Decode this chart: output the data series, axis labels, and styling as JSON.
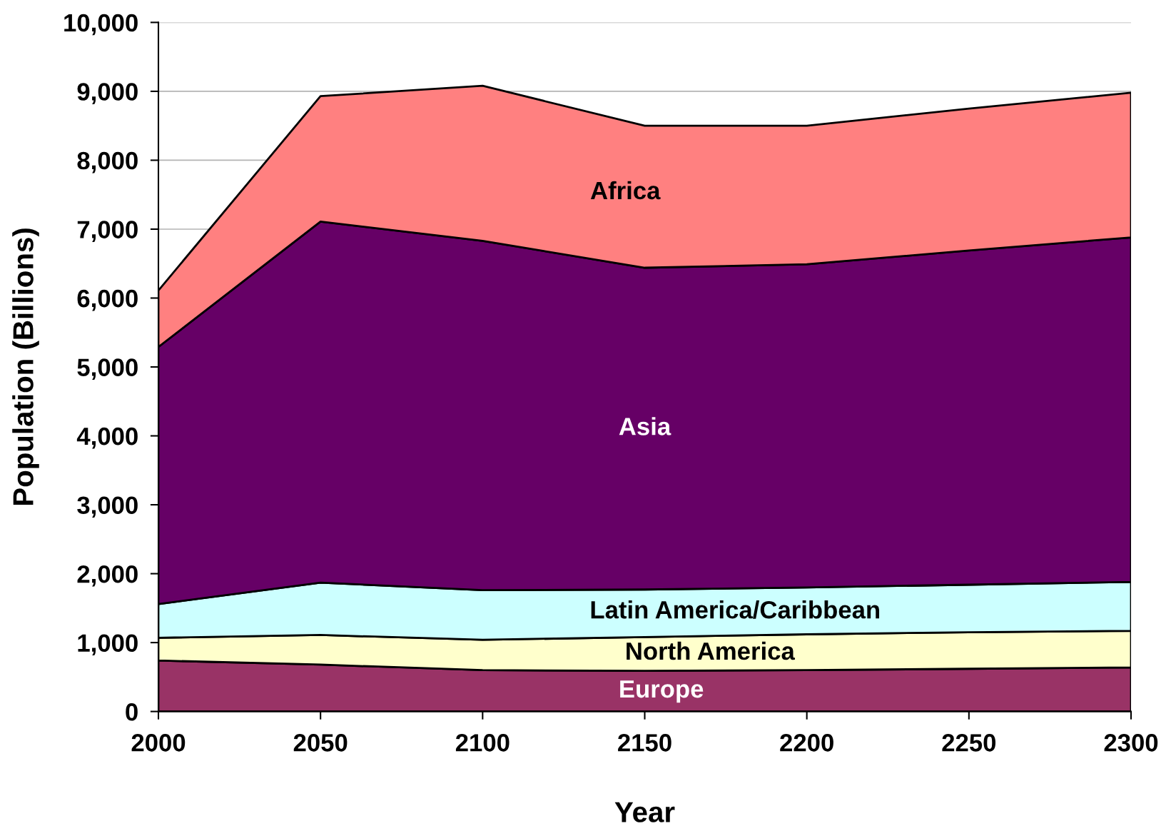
{
  "chart_data": {
    "type": "area",
    "stacked": true,
    "xlabel": "Year",
    "ylabel": "Population (Billions)",
    "x": [
      2000,
      2050,
      2100,
      2150,
      2200,
      2250,
      2300
    ],
    "xlim": [
      2000,
      2300
    ],
    "xticks": [
      2000,
      2050,
      2100,
      2150,
      2200,
      2250,
      2300
    ],
    "ylim": [
      0,
      10000
    ],
    "yticks": [
      0,
      {
        "value": 1000,
        "label": "1,000"
      },
      {
        "value": 2000,
        "label": "2,000"
      },
      {
        "value": 3000,
        "label": "3,000"
      },
      {
        "value": 4000,
        "label": "4,000"
      },
      {
        "value": 5000,
        "label": "5,000"
      },
      {
        "value": 6000,
        "label": "6,000"
      },
      {
        "value": 7000,
        "label": "7,000"
      },
      {
        "value": 8000,
        "label": "8,000"
      },
      {
        "value": 9000,
        "label": "9,000"
      },
      {
        "value": 10000,
        "label": "10,000"
      }
    ],
    "grid": "y",
    "series": [
      {
        "name": "Europe",
        "color": "#993366",
        "values": [
          740,
          680,
          600,
          590,
          600,
          620,
          640
        ]
      },
      {
        "name": "North America",
        "color": "#ffffcc",
        "values": [
          330,
          430,
          440,
          490,
          520,
          530,
          530
        ]
      },
      {
        "name": "Latin America/Caribbean",
        "color": "#ccffff",
        "values": [
          490,
          760,
          720,
          690,
          680,
          690,
          710
        ]
      },
      {
        "name": "Asia",
        "color": "#660066",
        "values": [
          3730,
          5240,
          5070,
          4670,
          4690,
          4850,
          5000
        ]
      },
      {
        "name": "Africa",
        "color": "#ff8080",
        "values": [
          820,
          1820,
          2250,
          2060,
          2010,
          2060,
          2100
        ]
      }
    ]
  }
}
